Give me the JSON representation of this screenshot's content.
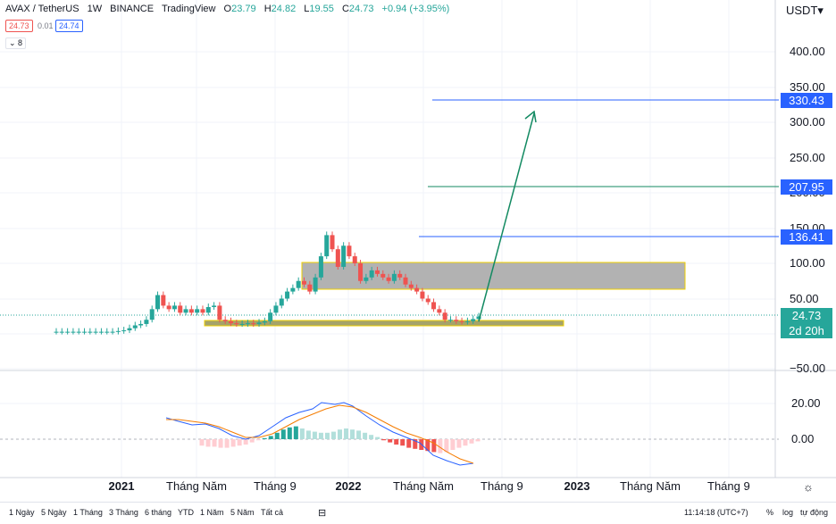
{
  "header": {
    "symbol": "AVAX / TetherUS",
    "interval": "1W",
    "exchange": "BINANCE",
    "source": "TradingView",
    "ohlc": {
      "o_label": "O",
      "o": "23.79",
      "h_label": "H",
      "h": "24.82",
      "l_label": "L",
      "l": "19.55",
      "c_label": "C",
      "c": "24.73",
      "change": "+0.94 (+3.95%)"
    },
    "sell_price": "24.73",
    "spread": "0.01",
    "buy_price": "24.74",
    "indicator_count": "8"
  },
  "currency": "USDT",
  "price_tags": {
    "current": "24.73",
    "countdown": "2d 20h",
    "t1": "330.43",
    "t2": "207.95",
    "t3": "136.41"
  },
  "colors": {
    "up": "#26a69a",
    "down": "#ef5350",
    "blue": "#2962ff",
    "box": "#f0d000",
    "zone": "#a5a36a",
    "arrow": "#138a62",
    "line": "#2962ff"
  },
  "chart_data": {
    "type": "candlestick",
    "price_axis": {
      "ticks": [
        "400.00",
        "350.00",
        "300.00",
        "250.00",
        "200.00",
        "150.00",
        "100.00",
        "50.00",
        "−50.00"
      ]
    },
    "macd_axis": {
      "ticks": [
        "20.00",
        "0.00"
      ]
    },
    "time_axis": {
      "labels": [
        "2021",
        "Tháng Năm",
        "Tháng 9",
        "2022",
        "Tháng Năm",
        "Tháng 9",
        "2023",
        "Tháng Năm",
        "Tháng 9"
      ]
    },
    "horizontal_lines": [
      330.43,
      207.95,
      136.41
    ],
    "candles_approx": [
      3,
      3,
      3,
      3,
      3,
      3,
      3,
      3,
      3,
      3,
      3,
      4,
      5,
      8,
      12,
      14,
      20,
      35,
      55,
      40,
      35,
      40,
      30,
      35,
      30,
      35,
      30,
      38,
      40,
      20,
      18,
      15,
      14,
      14,
      15,
      14,
      16,
      18,
      30,
      40,
      50,
      60,
      65,
      75,
      70,
      60,
      80,
      110,
      140,
      120,
      95,
      125,
      110,
      100,
      75,
      80,
      90,
      85,
      80,
      75,
      85,
      80,
      70,
      65,
      60,
      50,
      45,
      35,
      30,
      20,
      20,
      18,
      17,
      18,
      21,
      24.73
    ],
    "macd_hist": [
      -6,
      -7,
      -7,
      -8,
      -8,
      -7,
      -6,
      -5,
      -3,
      -1,
      1,
      3,
      6,
      9,
      11,
      12,
      10,
      8,
      7,
      6,
      6,
      7,
      9,
      10,
      9,
      8,
      6,
      4,
      2,
      -1,
      -3,
      -5,
      -6,
      -8,
      -9,
      -10,
      -11,
      -12,
      -13,
      -12,
      -10,
      -8,
      -6,
      -4,
      -2
    ],
    "annotations": {
      "target_arrow_to": 330.43,
      "resistance_box": [
        60,
        100
      ],
      "support_zone": [
        18,
        22
      ]
    }
  },
  "bottombar": {
    "ranges": [
      "1 Ngày",
      "5 Ngày",
      "1 Tháng",
      "3 Tháng",
      "6 tháng",
      "YTD",
      "1 Năm",
      "5 Năm",
      "Tất cả"
    ],
    "time": "11:14:18 (UTC+7)",
    "percent": "%",
    "log": "log",
    "auto": "tự động"
  }
}
